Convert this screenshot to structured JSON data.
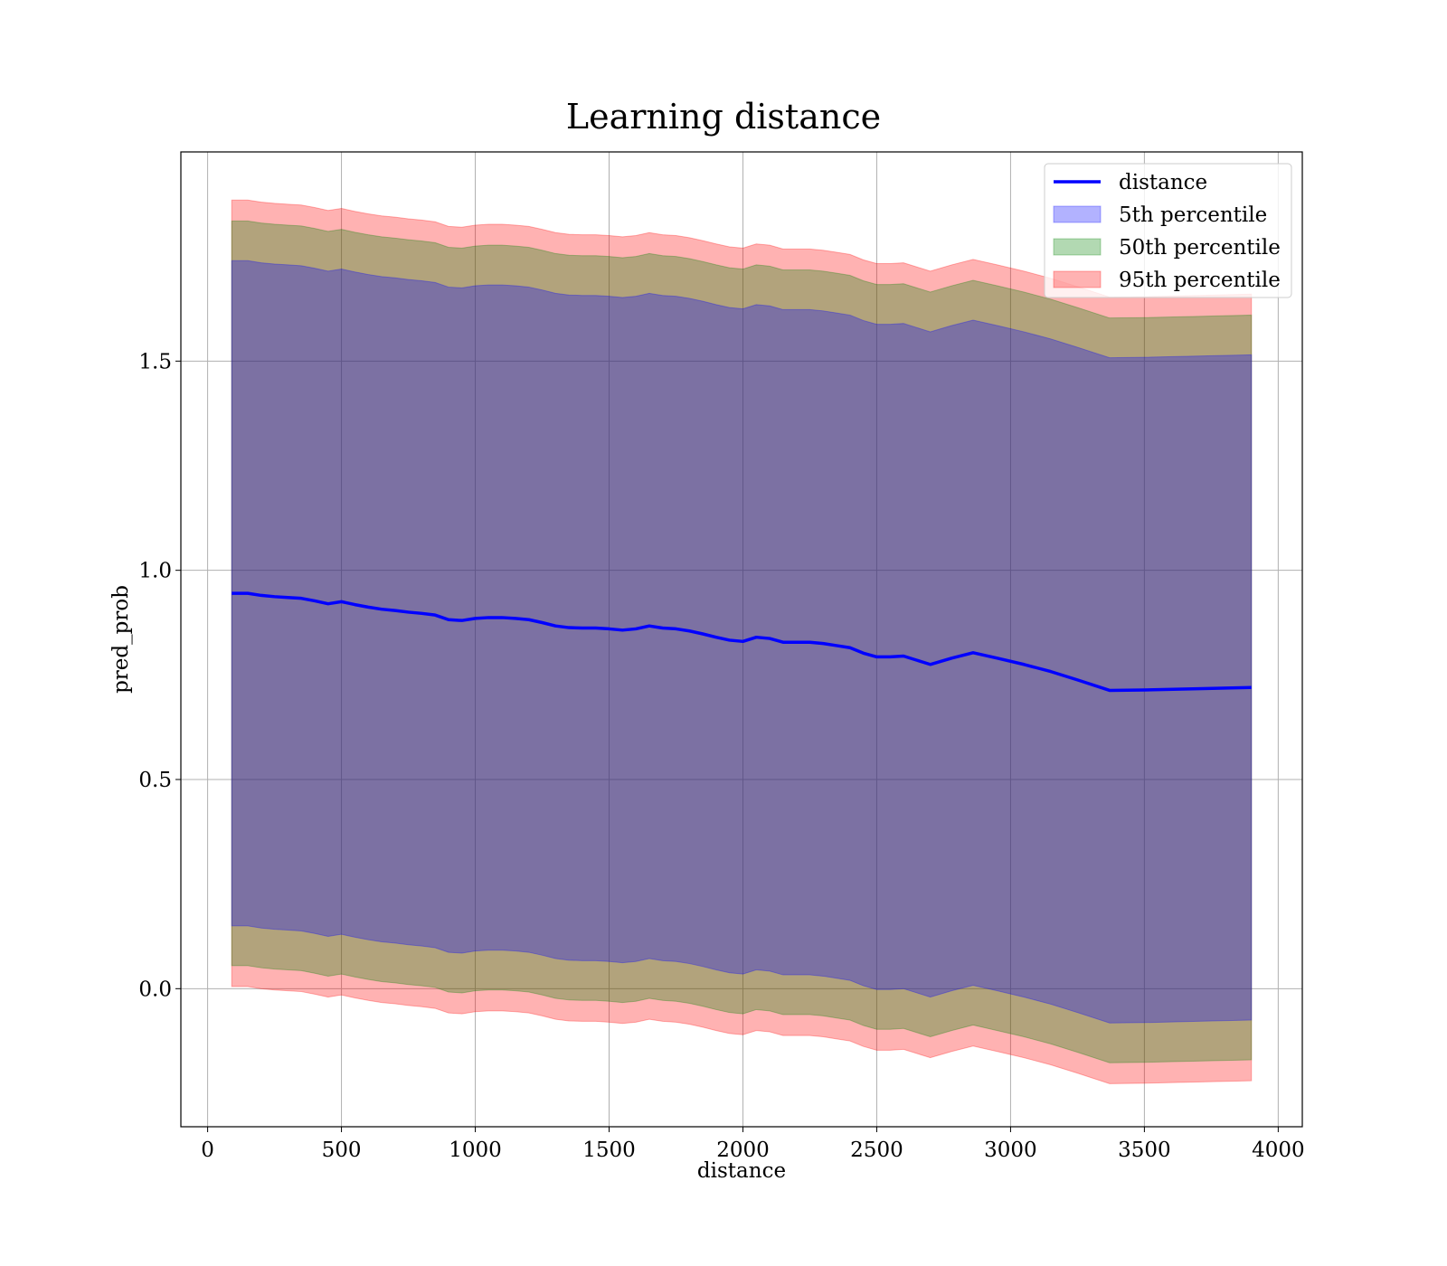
{
  "chart_data": {
    "type": "area",
    "title": "Learning distance",
    "xlabel": "distance",
    "ylabel": "pred_prob",
    "xlim": [
      -100,
      4090
    ],
    "ylim": [
      -0.33,
      2.0
    ],
    "xticks": [
      0,
      500,
      1000,
      1500,
      2000,
      2500,
      3000,
      3500,
      4000
    ],
    "xtick_labels": [
      "0",
      "500",
      "1000",
      "1500",
      "2000",
      "2500",
      "3000",
      "3500",
      "4000"
    ],
    "yticks": [
      0.0,
      0.5,
      1.0,
      1.5
    ],
    "ytick_labels": [
      "0.0",
      "0.5",
      "1.0",
      "1.5"
    ],
    "grid": true,
    "legend_position": "top-right",
    "x": [
      90,
      150,
      200,
      250,
      300,
      350,
      400,
      450,
      500,
      550,
      600,
      650,
      700,
      750,
      800,
      850,
      900,
      950,
      1000,
      1050,
      1100,
      1150,
      1200,
      1250,
      1300,
      1350,
      1400,
      1450,
      1500,
      1550,
      1600,
      1650,
      1700,
      1750,
      1800,
      1850,
      1900,
      1950,
      2000,
      2050,
      2100,
      2150,
      2200,
      2250,
      2300,
      2350,
      2400,
      2450,
      2500,
      2550,
      2600,
      2650,
      2700,
      2780,
      2860,
      2950,
      3050,
      3150,
      3250,
      3370,
      3500,
      3700,
      3900
    ],
    "series": [
      {
        "name": "distance",
        "kind": "line",
        "color": "#0000ff",
        "values": [
          0.945,
          0.945,
          0.94,
          0.937,
          0.935,
          0.933,
          0.927,
          0.92,
          0.925,
          0.918,
          0.912,
          0.907,
          0.904,
          0.9,
          0.897,
          0.893,
          0.882,
          0.88,
          0.885,
          0.887,
          0.887,
          0.885,
          0.882,
          0.875,
          0.867,
          0.863,
          0.862,
          0.862,
          0.86,
          0.857,
          0.86,
          0.867,
          0.862,
          0.86,
          0.855,
          0.848,
          0.84,
          0.833,
          0.83,
          0.84,
          0.837,
          0.828,
          0.828,
          0.828,
          0.825,
          0.82,
          0.815,
          0.802,
          0.793,
          0.793,
          0.795,
          0.785,
          0.775,
          0.79,
          0.803,
          0.79,
          0.775,
          0.758,
          0.738,
          0.713,
          0.714,
          0.717,
          0.72
        ]
      },
      {
        "name": "5th percentile",
        "kind": "band",
        "color": "#0000ff",
        "opacity": 0.3,
        "upper": [
          1.74,
          1.74,
          1.735,
          1.732,
          1.73,
          1.728,
          1.722,
          1.715,
          1.72,
          1.713,
          1.707,
          1.702,
          1.699,
          1.695,
          1.692,
          1.688,
          1.677,
          1.675,
          1.68,
          1.682,
          1.682,
          1.68,
          1.677,
          1.67,
          1.662,
          1.658,
          1.657,
          1.657,
          1.655,
          1.652,
          1.655,
          1.662,
          1.657,
          1.655,
          1.65,
          1.643,
          1.635,
          1.628,
          1.625,
          1.635,
          1.632,
          1.623,
          1.623,
          1.623,
          1.62,
          1.615,
          1.61,
          1.597,
          1.588,
          1.588,
          1.59,
          1.58,
          1.57,
          1.585,
          1.598,
          1.585,
          1.57,
          1.553,
          1.533,
          1.508,
          1.509,
          1.512,
          1.515
        ],
        "lower": [
          0.15,
          0.15,
          0.145,
          0.142,
          0.14,
          0.138,
          0.132,
          0.125,
          0.13,
          0.123,
          0.117,
          0.112,
          0.109,
          0.105,
          0.102,
          0.098,
          0.087,
          0.085,
          0.09,
          0.092,
          0.092,
          0.09,
          0.087,
          0.08,
          0.072,
          0.068,
          0.067,
          0.067,
          0.065,
          0.062,
          0.065,
          0.072,
          0.067,
          0.065,
          0.06,
          0.053,
          0.045,
          0.038,
          0.035,
          0.045,
          0.042,
          0.033,
          0.033,
          0.033,
          0.03,
          0.025,
          0.02,
          0.007,
          -0.002,
          -0.002,
          0.0,
          -0.01,
          -0.02,
          -0.005,
          0.008,
          -0.005,
          -0.02,
          -0.037,
          -0.057,
          -0.082,
          -0.081,
          -0.078,
          -0.075
        ]
      },
      {
        "name": "50th percentile",
        "kind": "band",
        "color": "#008000",
        "opacity": 0.3,
        "upper": [
          1.835,
          1.835,
          1.83,
          1.827,
          1.825,
          1.823,
          1.817,
          1.81,
          1.815,
          1.808,
          1.802,
          1.797,
          1.794,
          1.79,
          1.787,
          1.783,
          1.772,
          1.77,
          1.775,
          1.777,
          1.777,
          1.775,
          1.772,
          1.765,
          1.757,
          1.753,
          1.752,
          1.752,
          1.75,
          1.747,
          1.75,
          1.757,
          1.752,
          1.75,
          1.745,
          1.738,
          1.73,
          1.723,
          1.72,
          1.73,
          1.727,
          1.718,
          1.718,
          1.718,
          1.715,
          1.71,
          1.705,
          1.692,
          1.683,
          1.683,
          1.685,
          1.675,
          1.665,
          1.68,
          1.693,
          1.68,
          1.665,
          1.648,
          1.628,
          1.603,
          1.604,
          1.607,
          1.61
        ],
        "lower": [
          0.055,
          0.055,
          0.05,
          0.047,
          0.045,
          0.043,
          0.037,
          0.03,
          0.035,
          0.028,
          0.022,
          0.017,
          0.014,
          0.01,
          0.007,
          0.003,
          -0.008,
          -0.01,
          -0.005,
          -0.003,
          -0.003,
          -0.005,
          -0.008,
          -0.015,
          -0.023,
          -0.027,
          -0.028,
          -0.028,
          -0.03,
          -0.033,
          -0.03,
          -0.023,
          -0.028,
          -0.03,
          -0.035,
          -0.042,
          -0.05,
          -0.057,
          -0.06,
          -0.05,
          -0.053,
          -0.062,
          -0.062,
          -0.062,
          -0.065,
          -0.07,
          -0.075,
          -0.088,
          -0.097,
          -0.097,
          -0.095,
          -0.105,
          -0.115,
          -0.1,
          -0.087,
          -0.1,
          -0.115,
          -0.132,
          -0.152,
          -0.177,
          -0.176,
          -0.173,
          -0.17
        ]
      },
      {
        "name": "95th percentile",
        "kind": "band",
        "color": "#ff0000",
        "opacity": 0.3,
        "upper": [
          1.885,
          1.885,
          1.88,
          1.877,
          1.875,
          1.873,
          1.867,
          1.86,
          1.865,
          1.858,
          1.852,
          1.847,
          1.844,
          1.84,
          1.837,
          1.833,
          1.822,
          1.82,
          1.825,
          1.827,
          1.827,
          1.825,
          1.822,
          1.815,
          1.807,
          1.803,
          1.802,
          1.802,
          1.8,
          1.797,
          1.8,
          1.807,
          1.802,
          1.8,
          1.795,
          1.788,
          1.78,
          1.773,
          1.77,
          1.78,
          1.777,
          1.768,
          1.768,
          1.768,
          1.765,
          1.76,
          1.755,
          1.742,
          1.733,
          1.733,
          1.735,
          1.725,
          1.715,
          1.73,
          1.743,
          1.73,
          1.715,
          1.698,
          1.678,
          1.653,
          1.654,
          1.657,
          1.66
        ],
        "lower": [
          0.005,
          0.005,
          0.0,
          -0.003,
          -0.005,
          -0.007,
          -0.013,
          -0.02,
          -0.015,
          -0.022,
          -0.028,
          -0.033,
          -0.036,
          -0.04,
          -0.043,
          -0.047,
          -0.058,
          -0.06,
          -0.055,
          -0.053,
          -0.053,
          -0.055,
          -0.058,
          -0.065,
          -0.073,
          -0.077,
          -0.078,
          -0.078,
          -0.08,
          -0.083,
          -0.08,
          -0.073,
          -0.078,
          -0.08,
          -0.085,
          -0.092,
          -0.1,
          -0.107,
          -0.11,
          -0.1,
          -0.103,
          -0.112,
          -0.112,
          -0.112,
          -0.115,
          -0.12,
          -0.125,
          -0.138,
          -0.147,
          -0.147,
          -0.145,
          -0.155,
          -0.165,
          -0.15,
          -0.137,
          -0.15,
          -0.165,
          -0.182,
          -0.202,
          -0.227,
          -0.226,
          -0.223,
          -0.22
        ]
      }
    ]
  }
}
